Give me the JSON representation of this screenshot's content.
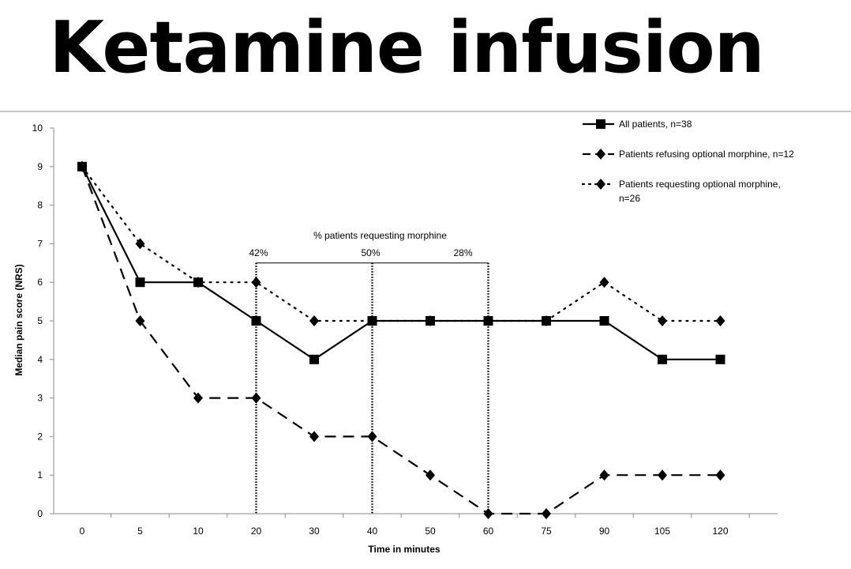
{
  "slide": {
    "title": "Ketamine infusion"
  },
  "chart_data": {
    "type": "line",
    "title": "",
    "xlabel": "Time in minutes",
    "ylabel": "Median pain score (NRS)",
    "ylim": [
      0,
      10
    ],
    "yticks": [
      "0",
      "1",
      "2",
      "3",
      "4",
      "5",
      "6",
      "7",
      "8",
      "9",
      "10"
    ],
    "categories": [
      "0",
      "5",
      "10",
      "20",
      "30",
      "40",
      "50",
      "60",
      "75",
      "90",
      "105",
      "120"
    ],
    "grid": false,
    "legend_position": "top-right",
    "series": [
      {
        "name": "All patients, n=38",
        "style": "solid",
        "marker": "square",
        "values": [
          9,
          6,
          6,
          5,
          4,
          5,
          5,
          5,
          5,
          5,
          4,
          4
        ]
      },
      {
        "name": "Patients refusing optional morphine, n=12",
        "style": "dashed",
        "marker": "diamond",
        "values": [
          9,
          5,
          3,
          3,
          2,
          2,
          1,
          0,
          0,
          1,
          1,
          1
        ]
      },
      {
        "name": "Patients requesting optional morphine, n=26",
        "name_lines": [
          "Patients requesting optional morphine,",
          "n=26"
        ],
        "style": "dotted",
        "marker": "diamond",
        "values": [
          9,
          7,
          6,
          6,
          5,
          5,
          5,
          5,
          5,
          6,
          5,
          5
        ]
      }
    ],
    "annotation": {
      "title": "% patients requesting morphine",
      "markers": [
        {
          "category": "20",
          "label": "42%"
        },
        {
          "category": "40",
          "label": "50%"
        },
        {
          "category": "60",
          "label": "28%"
        }
      ],
      "bracket_level": 6.5
    }
  }
}
